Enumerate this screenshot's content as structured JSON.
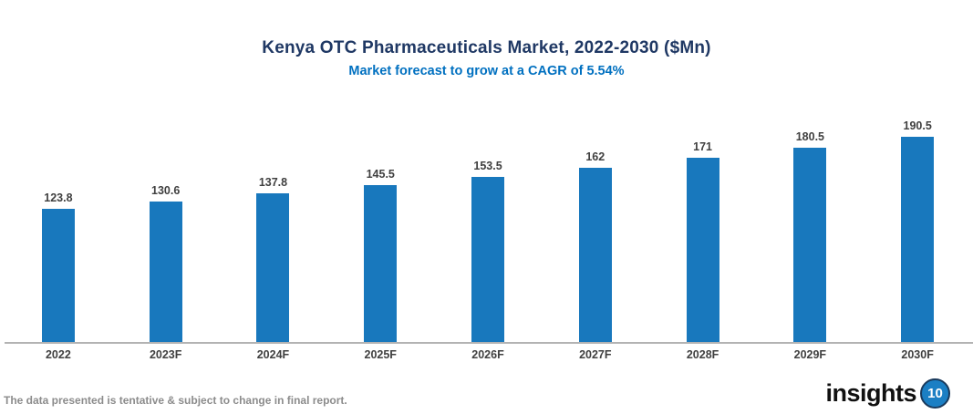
{
  "chart": {
    "title": "Kenya OTC Pharmaceuticals Market, 2022-2030 ($Mn)",
    "subtitle": "Market forecast to grow at a CAGR of 5.54%"
  },
  "chart_data": {
    "type": "bar",
    "categories": [
      "2022",
      "2023F",
      "2024F",
      "2025F",
      "2026F",
      "2027F",
      "2028F",
      "2029F",
      "2030F"
    ],
    "values": [
      123.8,
      130.6,
      137.8,
      145.5,
      153.5,
      162,
      171,
      180.5,
      190.5
    ],
    "value_labels": [
      "123.8",
      "130.6",
      "137.8",
      "145.5",
      "153.5",
      "162",
      "171",
      "180.5",
      "190.5"
    ],
    "title": "Kenya OTC Pharmaceuticals Market, 2022-2030 ($Mn)",
    "subtitle": "Market forecast to grow at a CAGR of 5.54%",
    "xlabel": "",
    "ylabel": "",
    "ylim": [
      0,
      200
    ],
    "grid": false,
    "legend": false,
    "bar_color": "#1878bd",
    "value_labels_shown": true
  },
  "colors": {
    "title": "#1f3864",
    "subtitle": "#0070c0",
    "bar": "#1878bd",
    "data_label": "#404040",
    "axis_line": "#b3b3b3",
    "disclaimer": "#8c8c8c",
    "logo_circle": "#1b7fc4"
  },
  "footer": {
    "disclaimer": "The data presented is tentative & subject to change in final report.",
    "logo_text": "insights",
    "logo_number": "10"
  }
}
